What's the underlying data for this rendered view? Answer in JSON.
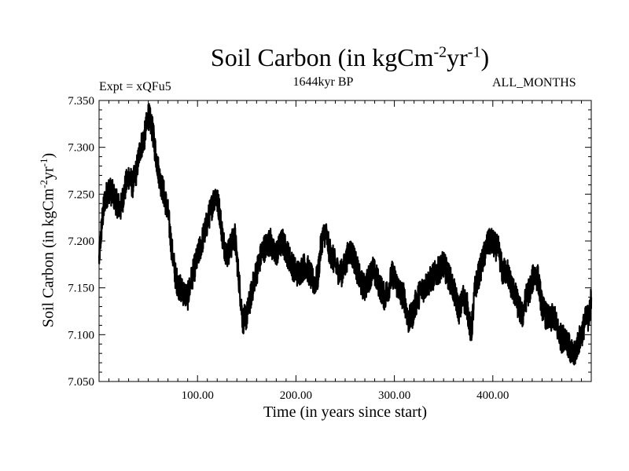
{
  "chart_data": {
    "type": "line",
    "title": "Soil Carbon (in kgCm",
    "title_exp1": "-2",
    "title_mid": "yr",
    "title_exp2": "-1",
    "title_end": ")",
    "subtitle": "1644kyr BP",
    "left_annotation": "Expt = xQFu5",
    "right_annotation": "ALL_MONTHS",
    "xlabel": "Time (in years since start)",
    "ylabel": "Soil Carbon (in kgCm",
    "ylabel_exp1": "-2",
    "ylabel_mid": "yr",
    "ylabel_exp2": "-1",
    "ylabel_end": ")",
    "xlim": [
      0,
      500
    ],
    "ylim": [
      7.05,
      7.35
    ],
    "x_ticks": [
      100,
      200,
      300,
      400
    ],
    "x_tick_labels": [
      "100.00",
      "200.00",
      "300.00",
      "400.00"
    ],
    "y_ticks": [
      7.05,
      7.1,
      7.15,
      7.2,
      7.25,
      7.3,
      7.35
    ],
    "y_tick_labels": [
      "7.050",
      "7.100",
      "7.150",
      "7.200",
      "7.250",
      "7.300",
      "7.350"
    ],
    "series": [
      {
        "name": "Soil Carbon",
        "x": [
          0,
          3,
          6,
          10,
          14,
          18,
          22,
          26,
          30,
          34,
          38,
          42,
          46,
          50,
          54,
          58,
          62,
          66,
          70,
          74,
          78,
          82,
          86,
          90,
          94,
          98,
          102,
          106,
          110,
          114,
          118,
          122,
          126,
          130,
          134,
          138,
          142,
          146,
          150,
          154,
          158,
          162,
          166,
          170,
          174,
          178,
          182,
          186,
          190,
          194,
          198,
          202,
          206,
          210,
          214,
          218,
          222,
          226,
          230,
          234,
          238,
          242,
          246,
          250,
          254,
          258,
          262,
          266,
          270,
          274,
          278,
          282,
          286,
          290,
          294,
          298,
          302,
          306,
          310,
          314,
          318,
          322,
          326,
          330,
          334,
          338,
          342,
          346,
          350,
          354,
          358,
          362,
          366,
          370,
          374,
          378,
          382,
          386,
          390,
          394,
          398,
          402,
          406,
          410,
          414,
          418,
          422,
          426,
          430,
          434,
          438,
          442,
          446,
          450,
          454,
          458,
          462,
          466,
          470,
          474,
          478,
          482,
          486,
          490,
          494,
          498,
          500
        ],
        "values": [
          7.18,
          7.22,
          7.245,
          7.255,
          7.25,
          7.24,
          7.235,
          7.255,
          7.27,
          7.26,
          7.275,
          7.3,
          7.31,
          7.335,
          7.32,
          7.29,
          7.265,
          7.25,
          7.23,
          7.19,
          7.16,
          7.15,
          7.145,
          7.14,
          7.16,
          7.175,
          7.19,
          7.205,
          7.22,
          7.235,
          7.25,
          7.235,
          7.2,
          7.185,
          7.195,
          7.205,
          7.16,
          7.115,
          7.12,
          7.14,
          7.16,
          7.175,
          7.19,
          7.195,
          7.2,
          7.185,
          7.19,
          7.2,
          7.19,
          7.18,
          7.17,
          7.165,
          7.17,
          7.175,
          7.165,
          7.155,
          7.16,
          7.2,
          7.21,
          7.19,
          7.18,
          7.17,
          7.165,
          7.175,
          7.19,
          7.185,
          7.17,
          7.155,
          7.15,
          7.16,
          7.17,
          7.16,
          7.15,
          7.14,
          7.15,
          7.165,
          7.155,
          7.145,
          7.14,
          7.115,
          7.12,
          7.135,
          7.145,
          7.15,
          7.155,
          7.16,
          7.165,
          7.17,
          7.175,
          7.165,
          7.155,
          7.14,
          7.125,
          7.14,
          7.13,
          7.1,
          7.15,
          7.165,
          7.18,
          7.195,
          7.2,
          7.195,
          7.19,
          7.165,
          7.17,
          7.155,
          7.145,
          7.13,
          7.12,
          7.14,
          7.15,
          7.165,
          7.16,
          7.13,
          7.12,
          7.115,
          7.12,
          7.105,
          7.095,
          7.1,
          7.085,
          7.075,
          7.09,
          7.1,
          7.115,
          7.12,
          7.14
        ]
      }
    ]
  }
}
